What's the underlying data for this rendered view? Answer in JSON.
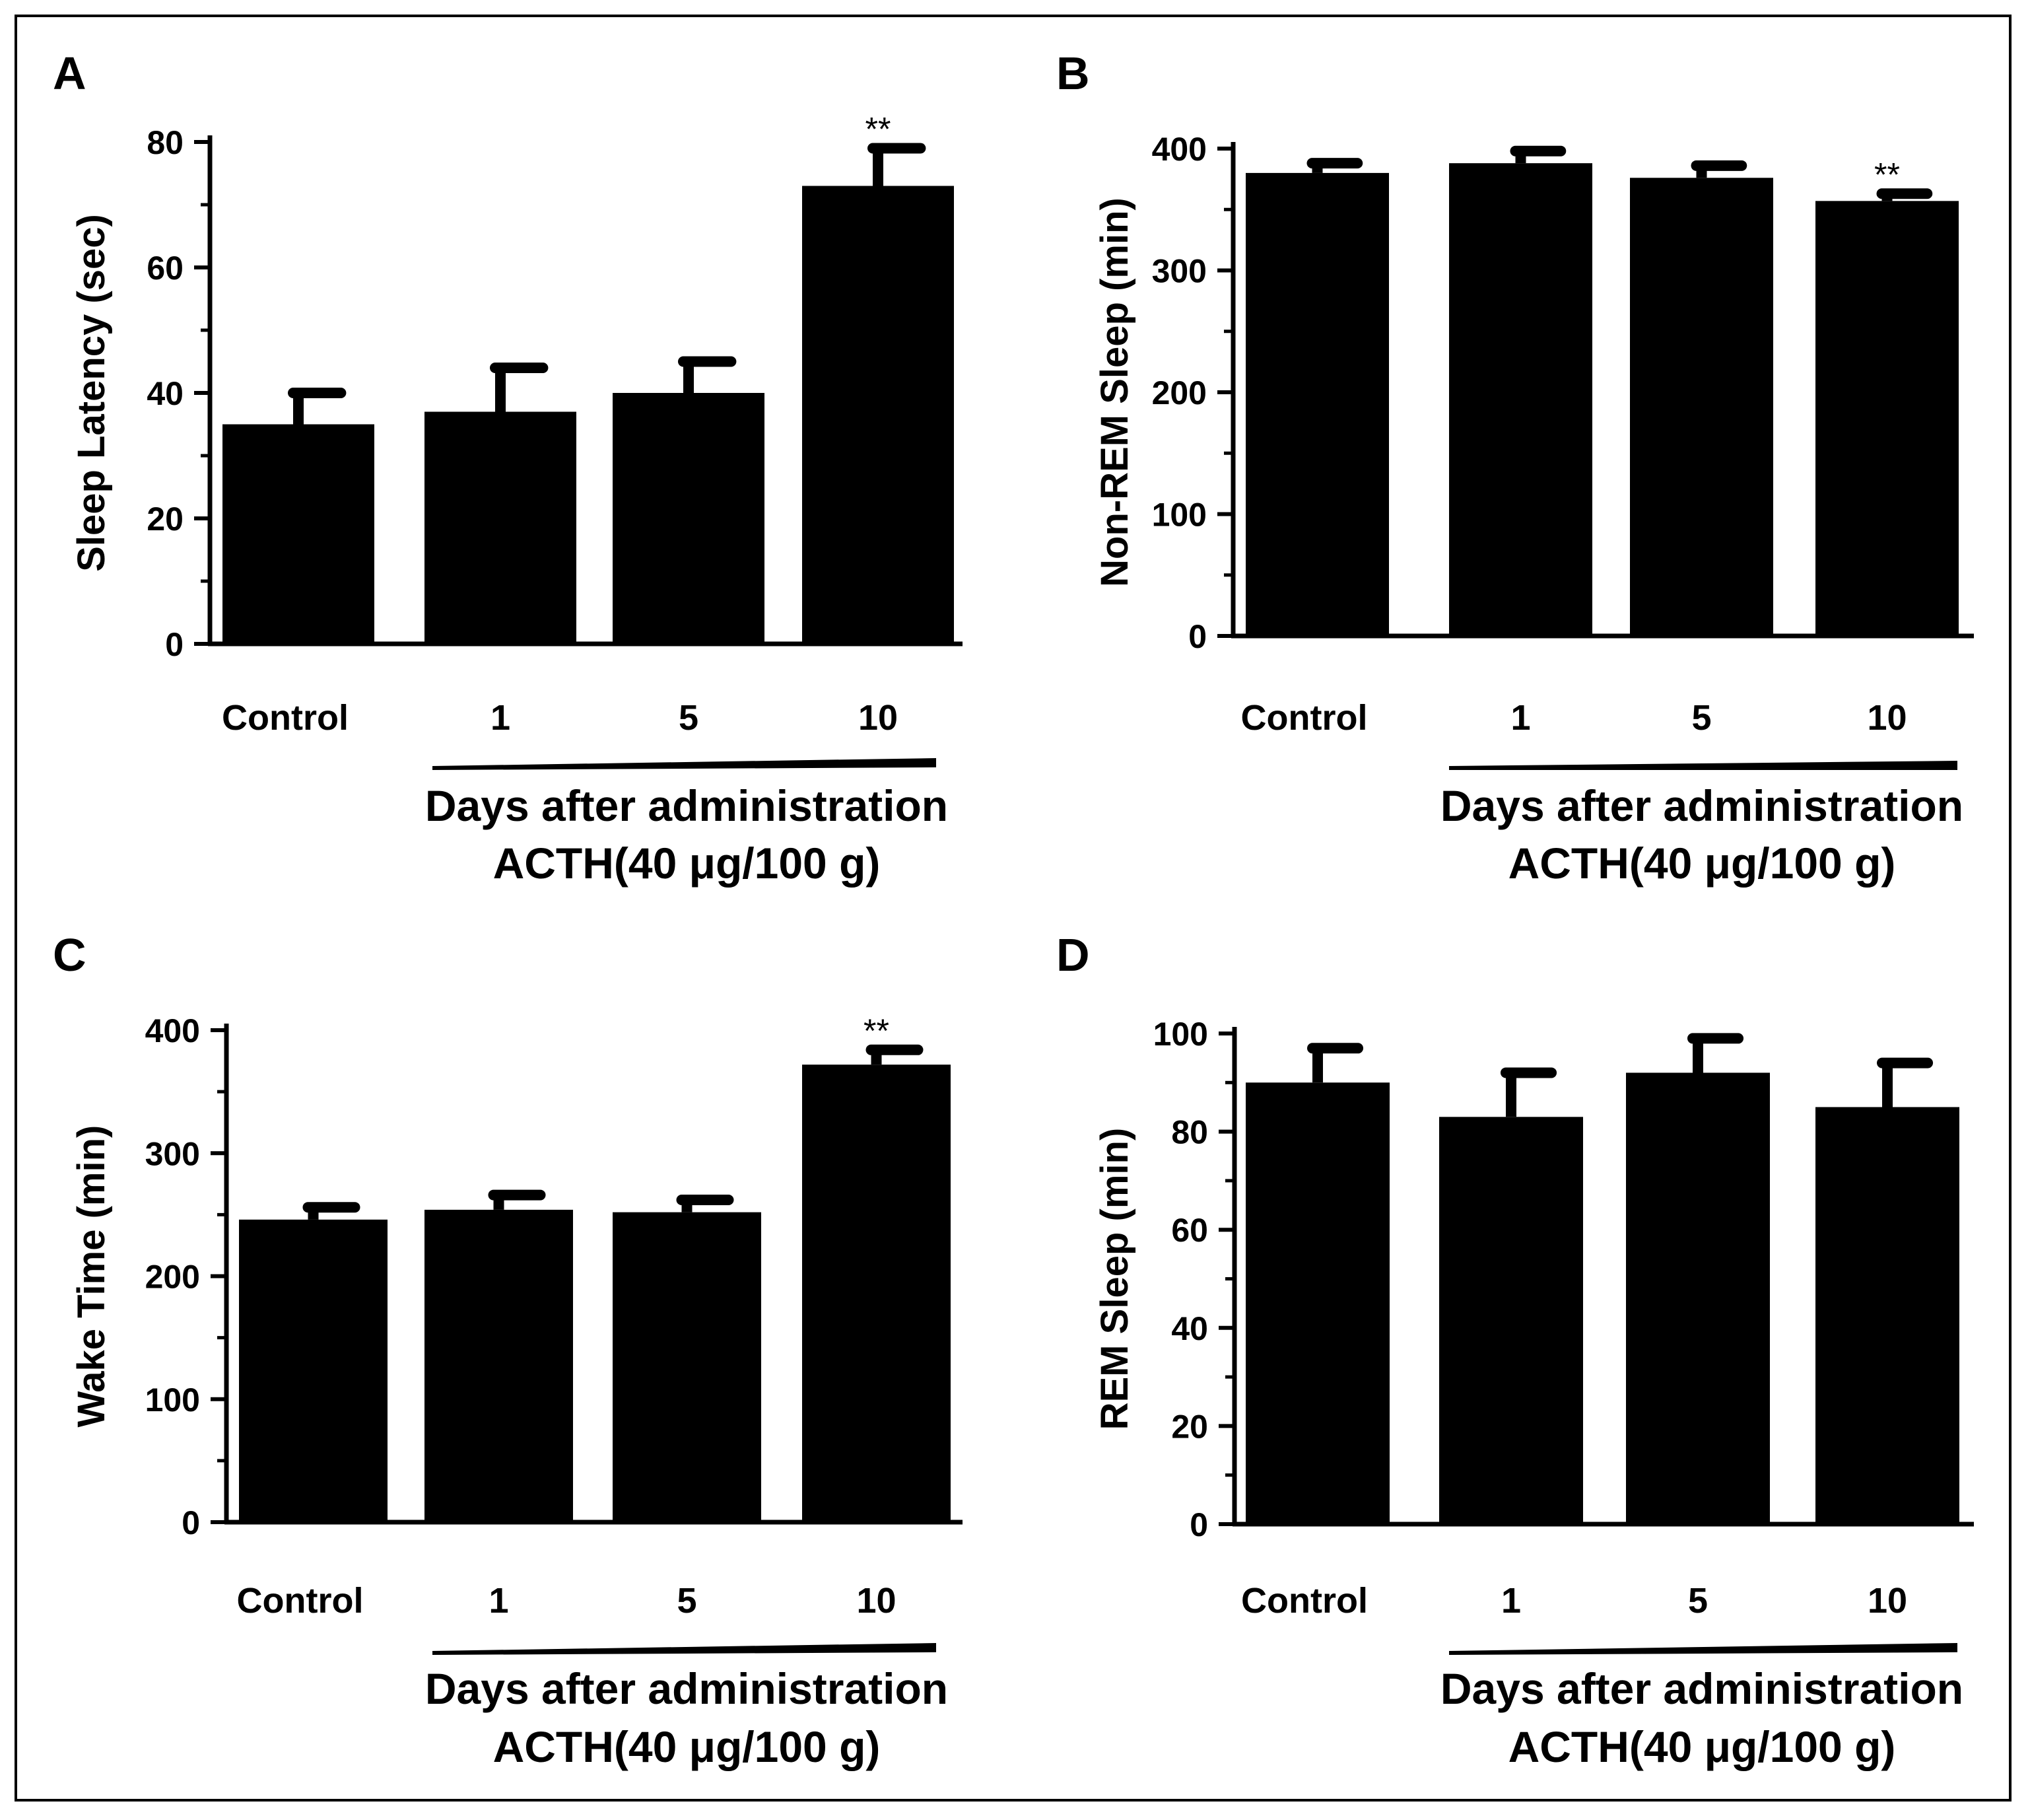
{
  "colors": {
    "bar": "#000000",
    "axis": "#000000",
    "background": "#ffffff"
  },
  "chart_data": [
    {
      "panel": "A",
      "type": "bar",
      "ylabel": "Sleep Latency (sec)",
      "ylim": [
        0,
        80
      ],
      "yticks": [
        0,
        20,
        40,
        60,
        80
      ],
      "categories": [
        "Control",
        "1",
        "5",
        "10"
      ],
      "values": [
        35,
        37,
        40,
        73
      ],
      "errors": [
        5,
        7,
        5,
        6
      ],
      "significance": [
        "",
        "",
        "",
        "**"
      ],
      "group_label": "Days after administration",
      "treatment_label": "ACTH(40 μg/100 g)"
    },
    {
      "panel": "B",
      "type": "bar",
      "ylabel": "Non-REM Sleep (min)",
      "ylim": [
        0,
        400
      ],
      "yticks": [
        0,
        100,
        200,
        300,
        400
      ],
      "categories": [
        "Control",
        "1",
        "5",
        "10"
      ],
      "values": [
        380,
        388,
        376,
        357
      ],
      "errors": [
        8,
        10,
        10,
        6
      ],
      "significance": [
        "",
        "",
        "",
        "**"
      ],
      "group_label": "Days after administration",
      "treatment_label": "ACTH(40 μg/100 g)"
    },
    {
      "panel": "C",
      "type": "bar",
      "ylabel": "Wake Time (min)",
      "ylim": [
        0,
        400
      ],
      "yticks": [
        0,
        100,
        200,
        300,
        400
      ],
      "categories": [
        "Control",
        "1",
        "5",
        "10"
      ],
      "values": [
        246,
        254,
        252,
        372
      ],
      "errors": [
        10,
        12,
        10,
        12
      ],
      "significance": [
        "",
        "",
        "",
        "**"
      ],
      "group_label": "Days after administration",
      "treatment_label": "ACTH(40 μg/100 g)"
    },
    {
      "panel": "D",
      "type": "bar",
      "ylabel": "REM Sleep (min)",
      "ylim": [
        0,
        100
      ],
      "yticks": [
        0,
        20,
        40,
        60,
        80,
        100
      ],
      "categories": [
        "Control",
        "1",
        "5",
        "10"
      ],
      "values": [
        90,
        83,
        92,
        85
      ],
      "errors": [
        7,
        9,
        7,
        9
      ],
      "significance": [
        "",
        "",
        "",
        ""
      ],
      "group_label": "Days after administration",
      "treatment_label": "ACTH(40 μg/100 g)"
    }
  ]
}
